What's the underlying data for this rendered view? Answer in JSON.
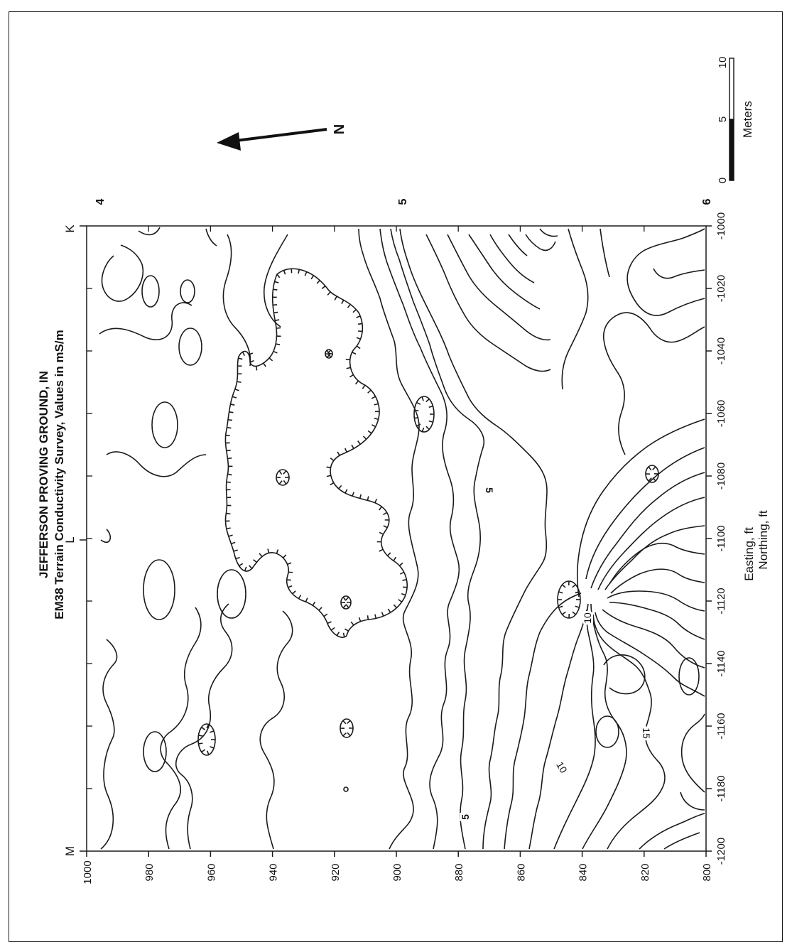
{
  "title": {
    "line1": "JEFFERSON PROVING GROUND, IN",
    "line2": "EM38 Terrain Conductivity Survey, Values in mS/m"
  },
  "axes": {
    "x_label": "Easting, ft",
    "y_label": "Northing, ft",
    "x_ticks": [
      "-1200",
      "-1180",
      "-1160",
      "-1140",
      "-1120",
      "-1100",
      "-1080",
      "-1060",
      "-1040",
      "-1020",
      "-1000"
    ],
    "y_ticks": [
      "1000",
      "980",
      "960",
      "940",
      "920",
      "900",
      "880",
      "860",
      "840",
      "820",
      "800"
    ]
  },
  "grid_markers": {
    "top": [
      "M",
      "L",
      "K"
    ],
    "right": [
      "4",
      "5",
      "6"
    ]
  },
  "north_arrow": {
    "label": "N"
  },
  "scale_bar": {
    "ticks": [
      "0",
      "5",
      "10"
    ],
    "unit": "Meters"
  },
  "contour_labels": [
    "5",
    "5",
    "10",
    "10",
    "15"
  ],
  "colors": {
    "line": "#1a1a1a",
    "background": "#ffffff"
  }
}
